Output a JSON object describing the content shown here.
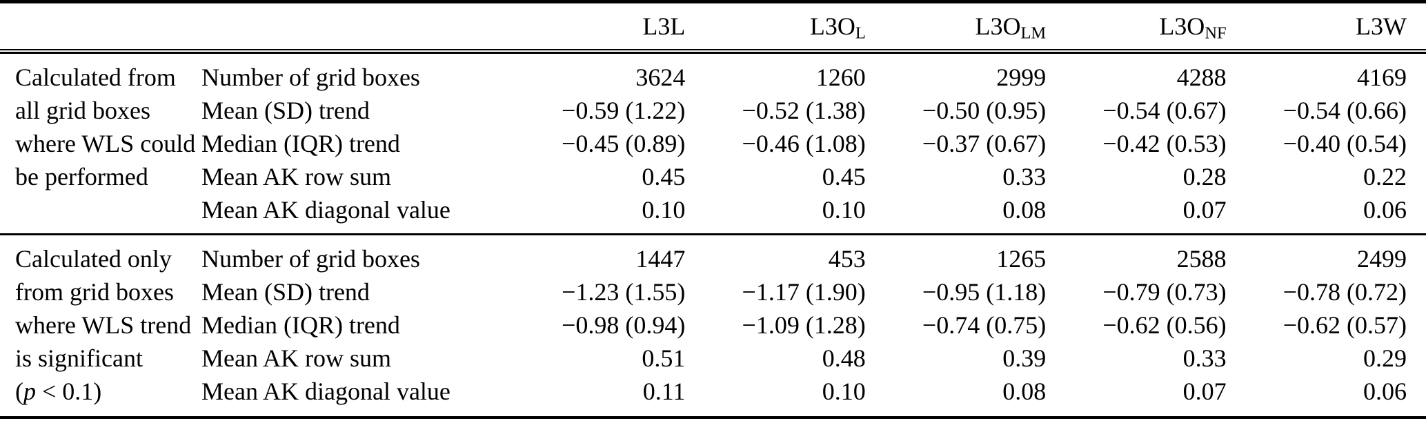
{
  "table": {
    "columns": [
      {
        "base": "L3L",
        "sub": ""
      },
      {
        "base": "L3O",
        "sub": "L"
      },
      {
        "base": "L3O",
        "sub": "LM"
      },
      {
        "base": "L3O",
        "sub": "NF"
      },
      {
        "base": "L3W",
        "sub": ""
      }
    ],
    "row_labels": [
      "Number of grid boxes",
      "Mean (SD) trend",
      "Median (IQR) trend",
      "Mean AK row sum",
      "Mean AK diagonal value"
    ],
    "groups": [
      {
        "label_lines": [
          "Calculated from",
          "all grid boxes",
          "where WLS could",
          "be performed"
        ],
        "rows": [
          [
            "3624",
            "1260",
            "2999",
            "4288",
            "4169"
          ],
          [
            "−0.59 (1.22)",
            "−0.52 (1.38)",
            "−0.50 (0.95)",
            "−0.54 (0.67)",
            "−0.54 (0.66)"
          ],
          [
            "−0.45 (0.89)",
            "−0.46 (1.08)",
            "−0.37 (0.67)",
            "−0.42 (0.53)",
            "−0.40 (0.54)"
          ],
          [
            "0.45",
            "0.45",
            "0.33",
            "0.28",
            "0.22"
          ],
          [
            "0.10",
            "0.10",
            "0.08",
            "0.07",
            "0.06"
          ]
        ]
      },
      {
        "label_lines": [
          "Calculated only",
          "from grid boxes",
          "where WLS trend",
          "is significant"
        ],
        "note": {
          "open": "(",
          "var": "p",
          "rest": " < 0.1)"
        },
        "rows": [
          [
            "1447",
            "453",
            "1265",
            "2588",
            "2499"
          ],
          [
            "−1.23 (1.55)",
            "−1.17 (1.90)",
            "−0.95 (1.18)",
            "−0.79 (0.73)",
            "−0.78 (0.72)"
          ],
          [
            "−0.98 (0.94)",
            "−1.09 (1.28)",
            "−0.74 (0.75)",
            "−0.62 (0.56)",
            "−0.62 (0.57)"
          ],
          [
            "0.51",
            "0.48",
            "0.39",
            "0.33",
            "0.29"
          ],
          [
            "0.11",
            "0.10",
            "0.08",
            "0.07",
            "0.06"
          ]
        ]
      }
    ]
  }
}
